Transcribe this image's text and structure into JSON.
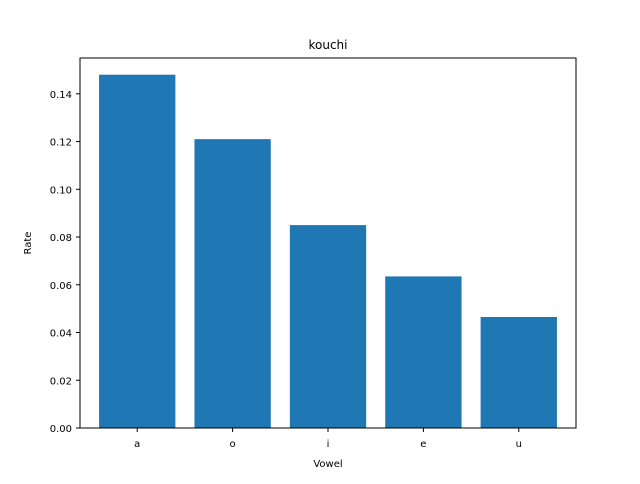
{
  "chart_data": {
    "type": "bar",
    "title": "kouchi",
    "xlabel": "Vowel",
    "ylabel": "Rate",
    "categories": [
      "a",
      "o",
      "i",
      "e",
      "u"
    ],
    "values": [
      0.148,
      0.121,
      0.085,
      0.0635,
      0.0465
    ],
    "ylim": [
      0,
      0.155
    ],
    "yticks": [
      0.0,
      0.02,
      0.04,
      0.06,
      0.08,
      0.1,
      0.12,
      0.14
    ],
    "ytick_labels": [
      "0.00",
      "0.02",
      "0.04",
      "0.06",
      "0.08",
      "0.10",
      "0.12",
      "0.14"
    ],
    "bar_color": "#1f77b4",
    "grid": false,
    "legend": "none"
  }
}
